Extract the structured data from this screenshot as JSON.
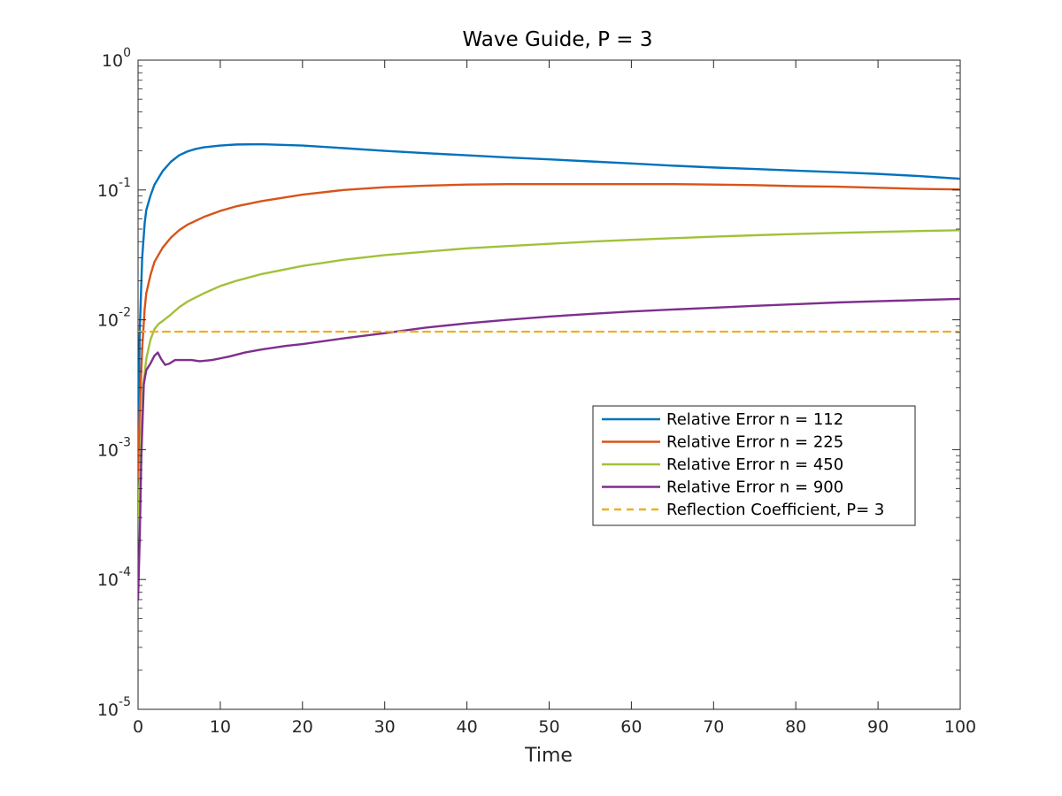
{
  "chart_data": {
    "type": "line",
    "title": "Wave Guide, P = 3",
    "xlabel": "Time",
    "ylabel": "",
    "xlim": [
      0,
      100
    ],
    "ylim": [
      1e-05,
      1
    ],
    "yscale": "log",
    "grid": false,
    "legend_position": "right-middle",
    "x_ticks": [
      0,
      10,
      20,
      30,
      40,
      50,
      60,
      70,
      80,
      90,
      100
    ],
    "y_ticks": [
      {
        "base": "10",
        "exp": "-5",
        "value": 1e-05
      },
      {
        "base": "10",
        "exp": "-4",
        "value": 0.0001
      },
      {
        "base": "10",
        "exp": "-3",
        "value": 0.001
      },
      {
        "base": "10",
        "exp": "-2",
        "value": 0.01
      },
      {
        "base": "10",
        "exp": "-1",
        "value": 0.1
      },
      {
        "base": "10",
        "exp": "0",
        "value": 1
      }
    ],
    "series": [
      {
        "name": "Relative Error n = 112",
        "color": "#0072BD",
        "dash": false,
        "x": [
          0,
          0.2,
          0.5,
          0.8,
          1,
          1.5,
          2,
          3,
          4,
          5,
          6,
          7,
          8,
          10,
          12,
          15,
          20,
          25,
          30,
          35,
          40,
          45,
          50,
          55,
          60,
          65,
          70,
          75,
          80,
          85,
          90,
          95,
          100
        ],
        "y": [
          0.001,
          0.008,
          0.03,
          0.055,
          0.07,
          0.09,
          0.11,
          0.14,
          0.165,
          0.185,
          0.198,
          0.207,
          0.213,
          0.22,
          0.224,
          0.225,
          0.22,
          0.21,
          0.2,
          0.192,
          0.185,
          0.178,
          0.172,
          0.166,
          0.16,
          0.154,
          0.149,
          0.145,
          0.141,
          0.137,
          0.133,
          0.128,
          0.122
        ]
      },
      {
        "name": "Relative Error n = 225",
        "color": "#D95319",
        "dash": false,
        "x": [
          0,
          0.2,
          0.5,
          0.8,
          1,
          1.5,
          2,
          3,
          4,
          5,
          6,
          8,
          10,
          12,
          15,
          20,
          25,
          30,
          35,
          40,
          45,
          50,
          55,
          60,
          65,
          70,
          75,
          80,
          85,
          90,
          95,
          100
        ],
        "y": [
          0.0006,
          0.002,
          0.006,
          0.012,
          0.016,
          0.022,
          0.028,
          0.036,
          0.043,
          0.049,
          0.054,
          0.062,
          0.069,
          0.075,
          0.082,
          0.092,
          0.1,
          0.105,
          0.108,
          0.11,
          0.111,
          0.111,
          0.111,
          0.111,
          0.111,
          0.11,
          0.109,
          0.107,
          0.106,
          0.104,
          0.102,
          0.101
        ]
      },
      {
        "name": "Relative Error n = 450",
        "color": "#A2C139",
        "dash": false,
        "x": [
          0,
          0.3,
          0.6,
          1,
          1.5,
          2,
          2.5,
          3,
          4,
          5,
          6,
          8,
          10,
          12,
          15,
          20,
          25,
          30,
          35,
          40,
          45,
          50,
          55,
          60,
          65,
          70,
          75,
          80,
          85,
          90,
          95,
          100
        ],
        "y": [
          0.0003,
          0.0009,
          0.003,
          0.005,
          0.007,
          0.0085,
          0.0093,
          0.0098,
          0.011,
          0.0125,
          0.0138,
          0.016,
          0.0182,
          0.02,
          0.0225,
          0.026,
          0.029,
          0.0315,
          0.0335,
          0.0355,
          0.037,
          0.0385,
          0.04,
          0.0413,
          0.0425,
          0.0437,
          0.0448,
          0.0458,
          0.0467,
          0.0475,
          0.0483,
          0.049
        ]
      },
      {
        "name": "Relative Error n = 900",
        "color": "#7E2F8E",
        "dash": false,
        "x": [
          0,
          0.2,
          0.4,
          0.7,
          1,
          1.5,
          2,
          2.4,
          2.8,
          3.3,
          3.8,
          4.5,
          5.5,
          6.5,
          7.5,
          9,
          11,
          13,
          15,
          18,
          20,
          25,
          30,
          35,
          40,
          45,
          50,
          55,
          60,
          65,
          70,
          75,
          80,
          85,
          90,
          95,
          100
        ],
        "y": [
          7e-05,
          0.0002,
          0.0009,
          0.0032,
          0.0041,
          0.0046,
          0.0053,
          0.0056,
          0.005,
          0.0045,
          0.0046,
          0.0049,
          0.0049,
          0.0049,
          0.0048,
          0.0049,
          0.0052,
          0.0056,
          0.0059,
          0.0063,
          0.0065,
          0.0072,
          0.0079,
          0.0087,
          0.0094,
          0.01,
          0.0106,
          0.0111,
          0.0116,
          0.012,
          0.0124,
          0.0128,
          0.0132,
          0.0136,
          0.0139,
          0.0142,
          0.0145
        ]
      },
      {
        "name": "Reflection Coefficient, P= 3",
        "color": "#EDB120",
        "dash": true,
        "x": [
          0,
          100
        ],
        "y": [
          0.0081,
          0.0081
        ]
      }
    ]
  }
}
